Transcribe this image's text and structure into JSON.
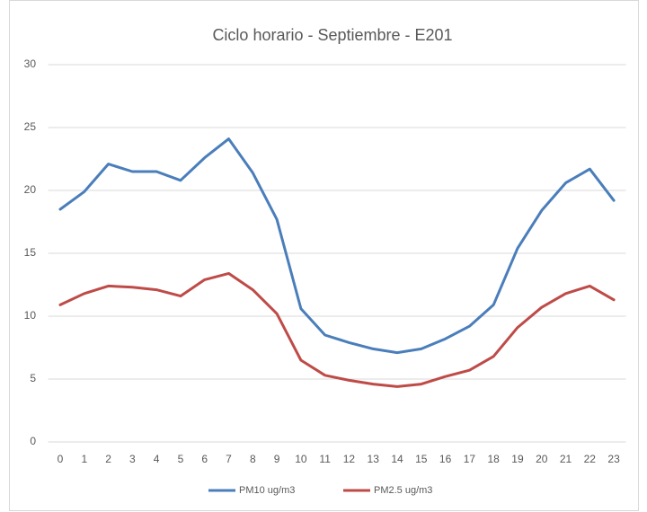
{
  "chart_data": {
    "type": "line",
    "title": "Ciclo horario - Septiembre - E201",
    "categories": [
      "0",
      "1",
      "2",
      "3",
      "4",
      "5",
      "6",
      "7",
      "8",
      "9",
      "10",
      "11",
      "12",
      "13",
      "14",
      "15",
      "16",
      "17",
      "18",
      "19",
      "20",
      "21",
      "22",
      "23"
    ],
    "series": [
      {
        "name": "PM10 ug/m3",
        "color": "#4a7ebb",
        "values": [
          18.5,
          19.9,
          22.1,
          21.5,
          21.5,
          20.8,
          22.6,
          24.1,
          21.4,
          17.7,
          10.6,
          8.5,
          7.9,
          7.4,
          7.1,
          7.4,
          8.2,
          9.2,
          10.9,
          15.4,
          18.4,
          20.6,
          21.7,
          19.2
        ]
      },
      {
        "name": "PM2.5 ug/m3",
        "color": "#be4b48",
        "values": [
          10.9,
          11.8,
          12.4,
          12.3,
          12.1,
          11.6,
          12.9,
          13.4,
          12.1,
          10.2,
          6.5,
          5.3,
          4.9,
          4.6,
          4.4,
          4.6,
          5.2,
          5.7,
          6.8,
          9.1,
          10.7,
          11.8,
          12.4,
          11.3
        ]
      }
    ],
    "ylim": [
      0,
      30
    ],
    "yticks": [
      0,
      5,
      10,
      15,
      20,
      25,
      30
    ],
    "grid": true,
    "legend": "bottom"
  }
}
